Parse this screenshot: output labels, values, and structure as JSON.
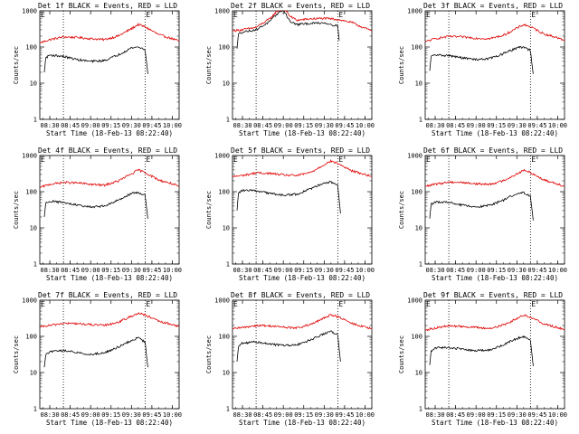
{
  "colors": {
    "black": "#000000",
    "red": "#e00000",
    "background": "#ffffff"
  },
  "panel_common": {
    "xlabel": "Start Time (18-Feb-13 08:22:40)",
    "ylabel": "Counts/sec",
    "ytick_labels": [
      "1",
      "10",
      "100",
      "1000"
    ],
    "xtick_labels": [
      "08:30",
      "08:45",
      "09:00",
      "09:15",
      "09:30",
      "09:45",
      "10:00"
    ],
    "event_marker": "E"
  },
  "chart_data": [
    {
      "type": "line",
      "title": "Det 1f BLACK = Events, RED = LLD",
      "x": [
        "08:30",
        "08:45",
        "09:00",
        "09:15",
        "09:30",
        "09:45",
        "10:00"
      ],
      "ylim": [
        1,
        1000
      ],
      "yscale": "log",
      "xlim": [
        "08:22:40",
        "10:05"
      ],
      "markers": [
        "08:40",
        "09:40"
      ],
      "series": [
        {
          "color": "red",
          "x": [
            "08:22:40",
            "08:30",
            "08:40",
            "08:50",
            "09:00",
            "09:10",
            "09:20",
            "09:30",
            "09:35",
            "09:40",
            "09:50",
            "10:00",
            "10:05"
          ],
          "values": [
            130,
            160,
            190,
            185,
            170,
            160,
            200,
            320,
            420,
            360,
            220,
            170,
            145
          ]
        },
        {
          "color": "black",
          "x": [
            "08:26",
            "08:27",
            "08:30",
            "08:40",
            "08:50",
            "09:00",
            "09:10",
            "09:20",
            "09:30",
            "09:35",
            "09:40",
            "09:41",
            "09:42"
          ],
          "values": [
            20,
            50,
            60,
            55,
            45,
            40,
            42,
            60,
            95,
            100,
            85,
            40,
            18
          ]
        }
      ]
    },
    {
      "type": "line",
      "title": "Det 2f BLACK = Events, RED = LLD",
      "x": [
        "08:30",
        "08:45",
        "09:00",
        "09:15",
        "09:30",
        "09:45",
        "10:00"
      ],
      "ylim": [
        1,
        1000
      ],
      "yscale": "log",
      "xlim": [
        "08:22:40",
        "10:05"
      ],
      "markers": [
        "08:40",
        "09:40"
      ],
      "series": [
        {
          "color": "red",
          "x": [
            "08:22:40",
            "08:30",
            "08:40",
            "08:50",
            "08:55",
            "09:00",
            "09:05",
            "09:10",
            "09:20",
            "09:30",
            "09:40",
            "09:50",
            "10:00",
            "10:05"
          ],
          "values": [
            280,
            300,
            350,
            600,
            950,
            1350,
            700,
            550,
            600,
            620,
            580,
            480,
            330,
            280
          ]
        },
        {
          "color": "black",
          "x": [
            "08:26",
            "08:27",
            "08:30",
            "08:40",
            "08:50",
            "08:55",
            "09:00",
            "09:05",
            "09:10",
            "09:20",
            "09:30",
            "09:40",
            "09:41"
          ],
          "values": [
            90,
            230,
            260,
            300,
            500,
            800,
            1100,
            500,
            420,
            450,
            470,
            380,
            150
          ]
        }
      ]
    },
    {
      "type": "line",
      "title": "Det 3f BLACK = Events, RED = LLD",
      "x": [
        "08:30",
        "08:45",
        "09:00",
        "09:15",
        "09:30",
        "09:45",
        "10:00"
      ],
      "ylim": [
        1,
        1000
      ],
      "yscale": "log",
      "xlim": [
        "08:22:40",
        "10:05"
      ],
      "markers": [
        "08:40",
        "09:40"
      ],
      "series": [
        {
          "color": "red",
          "x": [
            "08:22:40",
            "08:30",
            "08:40",
            "08:50",
            "09:00",
            "09:10",
            "09:20",
            "09:30",
            "09:35",
            "09:40",
            "09:50",
            "10:00",
            "10:05"
          ],
          "values": [
            140,
            170,
            195,
            190,
            175,
            170,
            210,
            330,
            420,
            360,
            230,
            180,
            150
          ]
        },
        {
          "color": "black",
          "x": [
            "08:26",
            "08:27",
            "08:30",
            "08:40",
            "08:50",
            "09:00",
            "09:10",
            "09:20",
            "09:30",
            "09:35",
            "09:40",
            "09:41",
            "09:42"
          ],
          "values": [
            22,
            55,
            60,
            58,
            50,
            45,
            48,
            65,
            95,
            100,
            80,
            35,
            18
          ]
        }
      ]
    },
    {
      "type": "line",
      "title": "Det 4f BLACK = Events, RED = LLD",
      "x": [
        "08:30",
        "08:45",
        "09:00",
        "09:15",
        "09:30",
        "09:45",
        "10:00"
      ],
      "ylim": [
        1,
        1000
      ],
      "yscale": "log",
      "xlim": [
        "08:22:40",
        "10:05"
      ],
      "markers": [
        "08:40",
        "09:40"
      ],
      "series": [
        {
          "color": "red",
          "x": [
            "08:22:40",
            "08:30",
            "08:40",
            "08:50",
            "09:00",
            "09:10",
            "09:20",
            "09:30",
            "09:35",
            "09:40",
            "09:50",
            "10:00",
            "10:05"
          ],
          "values": [
            130,
            160,
            180,
            175,
            160,
            150,
            195,
            310,
            400,
            340,
            210,
            165,
            140
          ]
        },
        {
          "color": "black",
          "x": [
            "08:26",
            "08:27",
            "08:30",
            "08:40",
            "08:50",
            "09:00",
            "09:10",
            "09:20",
            "09:30",
            "09:35",
            "09:40",
            "09:41",
            "09:42"
          ],
          "values": [
            20,
            48,
            55,
            50,
            42,
            38,
            40,
            58,
            90,
            95,
            80,
            38,
            18
          ]
        }
      ]
    },
    {
      "type": "line",
      "title": "Det 5f BLACK = Events, RED = LLD",
      "x": [
        "08:30",
        "08:45",
        "09:00",
        "09:15",
        "09:30",
        "09:45",
        "10:00"
      ],
      "ylim": [
        1,
        1000
      ],
      "yscale": "log",
      "xlim": [
        "08:22:40",
        "10:05"
      ],
      "markers": [
        "08:40",
        "09:40"
      ],
      "series": [
        {
          "color": "red",
          "x": [
            "08:22:40",
            "08:30",
            "08:40",
            "08:50",
            "09:00",
            "09:10",
            "09:20",
            "09:30",
            "09:35",
            "09:40",
            "09:50",
            "10:00",
            "10:05"
          ],
          "values": [
            260,
            280,
            330,
            320,
            290,
            280,
            340,
            560,
            700,
            600,
            380,
            300,
            260
          ]
        },
        {
          "color": "black",
          "x": [
            "08:26",
            "08:27",
            "08:30",
            "08:40",
            "08:50",
            "09:00",
            "09:10",
            "09:20",
            "09:30",
            "09:35",
            "09:40",
            "09:41",
            "09:42"
          ],
          "values": [
            30,
            90,
            110,
            105,
            90,
            80,
            85,
            120,
            175,
            185,
            150,
            60,
            25
          ]
        }
      ]
    },
    {
      "type": "line",
      "title": "Det 6f BLACK = Events, RED = LLD",
      "x": [
        "08:30",
        "08:45",
        "09:00",
        "09:15",
        "09:30",
        "09:45",
        "10:00"
      ],
      "ylim": [
        1,
        1000
      ],
      "yscale": "log",
      "xlim": [
        "08:22:40",
        "10:05"
      ],
      "markers": [
        "08:40",
        "09:40"
      ],
      "series": [
        {
          "color": "red",
          "x": [
            "08:22:40",
            "08:30",
            "08:40",
            "08:50",
            "09:00",
            "09:10",
            "09:20",
            "09:30",
            "09:35",
            "09:40",
            "09:50",
            "10:00",
            "10:05"
          ],
          "values": [
            140,
            160,
            185,
            180,
            165,
            160,
            200,
            310,
            390,
            340,
            210,
            165,
            140
          ]
        },
        {
          "color": "black",
          "x": [
            "08:26",
            "08:27",
            "08:30",
            "08:40",
            "08:50",
            "09:00",
            "09:10",
            "09:20",
            "09:30",
            "09:35",
            "09:40",
            "09:41",
            "09:42"
          ],
          "values": [
            18,
            45,
            52,
            50,
            42,
            38,
            42,
            58,
            90,
            95,
            75,
            35,
            16
          ]
        }
      ]
    },
    {
      "type": "line",
      "title": "Det 7f BLACK = Events, RED = LLD",
      "x": [
        "08:30",
        "08:45",
        "09:00",
        "09:15",
        "09:30",
        "09:45",
        "10:00"
      ],
      "ylim": [
        1,
        1000
      ],
      "yscale": "log",
      "xlim": [
        "08:22:40",
        "10:05"
      ],
      "markers": [
        "08:40",
        "09:40"
      ],
      "series": [
        {
          "color": "red",
          "x": [
            "08:22:40",
            "08:30",
            "08:40",
            "08:50",
            "09:00",
            "09:10",
            "09:20",
            "09:30",
            "09:35",
            "09:40",
            "09:50",
            "10:00",
            "10:05"
          ],
          "values": [
            180,
            200,
            230,
            225,
            210,
            200,
            245,
            360,
            440,
            390,
            260,
            210,
            190
          ]
        },
        {
          "color": "black",
          "x": [
            "08:26",
            "08:27",
            "08:30",
            "08:40",
            "08:50",
            "09:00",
            "09:10",
            "09:20",
            "09:30",
            "09:35",
            "09:40",
            "09:41",
            "09:42"
          ],
          "values": [
            14,
            30,
            38,
            40,
            36,
            32,
            35,
            50,
            78,
            90,
            70,
            30,
            14
          ]
        }
      ]
    },
    {
      "type": "line",
      "title": "Det 8f BLACK = Events, RED = LLD",
      "x": [
        "08:30",
        "08:45",
        "09:00",
        "09:15",
        "09:30",
        "09:45",
        "10:00"
      ],
      "ylim": [
        1,
        1000
      ],
      "yscale": "log",
      "xlim": [
        "08:22:40",
        "10:05"
      ],
      "markers": [
        "08:40",
        "09:40"
      ],
      "series": [
        {
          "color": "red",
          "x": [
            "08:22:40",
            "08:30",
            "08:40",
            "08:50",
            "09:00",
            "09:10",
            "09:20",
            "09:30",
            "09:35",
            "09:40",
            "09:50",
            "10:00",
            "10:05"
          ],
          "values": [
            160,
            175,
            200,
            195,
            180,
            170,
            210,
            320,
            400,
            350,
            230,
            180,
            160
          ]
        },
        {
          "color": "black",
          "x": [
            "08:26",
            "08:27",
            "08:30",
            "08:40",
            "08:50",
            "09:00",
            "09:10",
            "09:20",
            "09:30",
            "09:35",
            "09:40",
            "09:41",
            "09:42"
          ],
          "values": [
            20,
            50,
            65,
            70,
            62,
            55,
            58,
            80,
            120,
            135,
            110,
            45,
            20
          ]
        }
      ]
    },
    {
      "type": "line",
      "title": "Det 9f BLACK = Events, RED = LLD",
      "x": [
        "08:30",
        "08:45",
        "09:00",
        "09:15",
        "09:30",
        "09:45",
        "10:00"
      ],
      "ylim": [
        1,
        1000
      ],
      "yscale": "log",
      "xlim": [
        "08:22:40",
        "10:05"
      ],
      "markers": [
        "08:40",
        "09:40"
      ],
      "series": [
        {
          "color": "red",
          "x": [
            "08:22:40",
            "08:30",
            "08:40",
            "08:50",
            "09:00",
            "09:10",
            "09:20",
            "09:30",
            "09:35",
            "09:40",
            "09:50",
            "10:00",
            "10:05"
          ],
          "values": [
            150,
            170,
            195,
            190,
            175,
            165,
            205,
            310,
            390,
            340,
            220,
            175,
            150
          ]
        },
        {
          "color": "black",
          "x": [
            "08:26",
            "08:27",
            "08:30",
            "08:40",
            "08:50",
            "09:00",
            "09:10",
            "09:20",
            "09:30",
            "09:35",
            "09:40",
            "09:41",
            "09:42"
          ],
          "values": [
            16,
            40,
            48,
            50,
            44,
            40,
            42,
            58,
            88,
            98,
            78,
            34,
            15
          ]
        }
      ]
    }
  ]
}
